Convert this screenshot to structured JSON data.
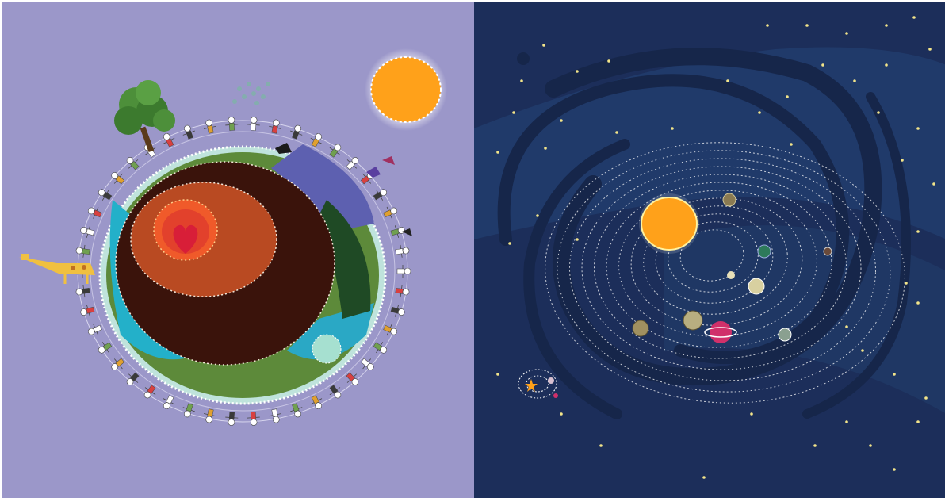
{
  "image": {
    "left_panel": {
      "subject": "earth-cross-section",
      "colors": {
        "background": "#9b97c9",
        "sun": "#ffa11a",
        "crust_green": "#5d8a3a",
        "ocean": "#23b0c9",
        "mantle_dark": "#3a130b",
        "mantle_mid": "#b94a22",
        "core": "#f05a2a",
        "heart": "#d81e38",
        "tree": "#3c7a2e"
      },
      "icons": [
        "sun-icon",
        "tree-icon",
        "giraffe-icon",
        "heart-icon",
        "people-ring-icon",
        "bird-icon",
        "rain-cloud-icon"
      ]
    },
    "right_panel": {
      "subject": "solar-system-spiral-galaxy",
      "colors": {
        "background": "#1c2e5a",
        "galaxy_arm": "#16264a",
        "sun": "#ffa11a",
        "star": "#f3e58a",
        "orbit": "#ffffff"
      },
      "planet_count": 8,
      "icons": [
        "sun-icon",
        "planet-icon",
        "star-icon",
        "mini-solar-system-icon",
        "spiral-galaxy-icon"
      ]
    }
  }
}
